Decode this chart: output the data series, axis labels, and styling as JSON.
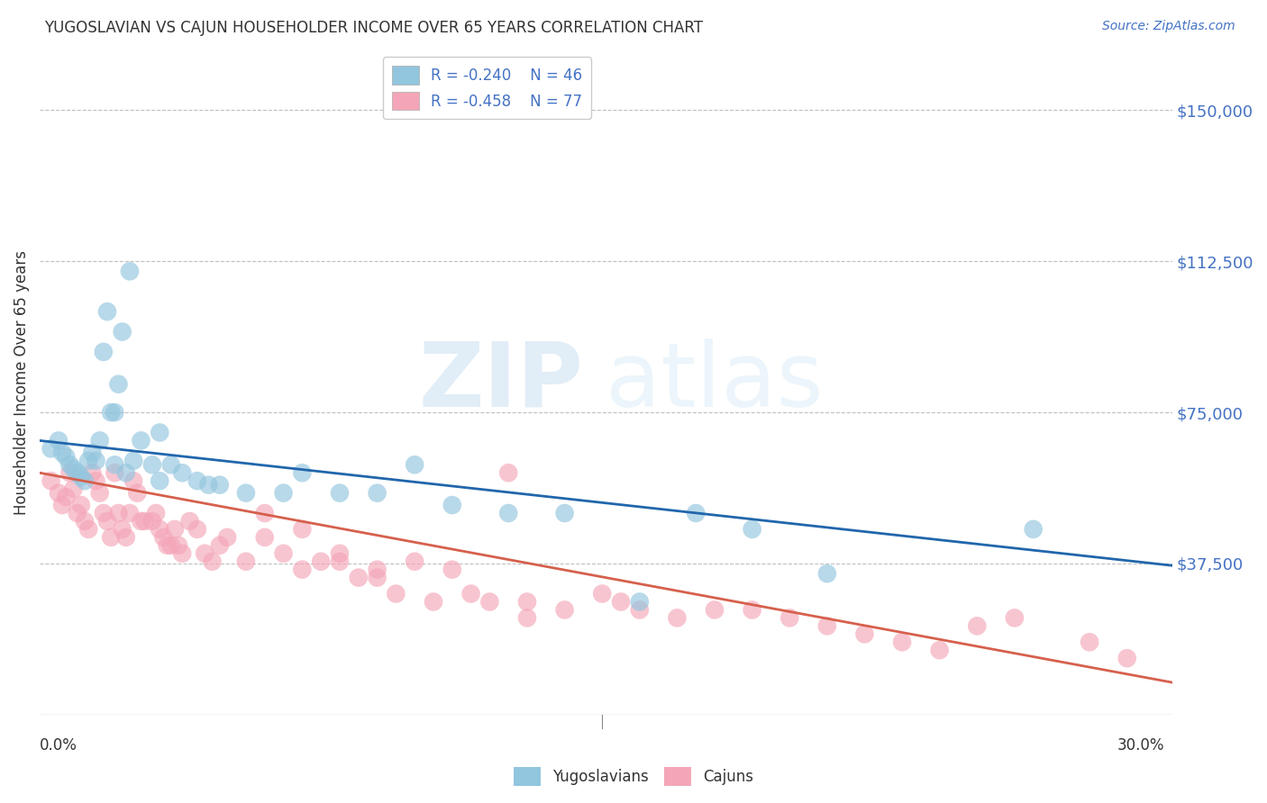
{
  "title": "YUGOSLAVIAN VS CAJUN HOUSEHOLDER INCOME OVER 65 YEARS CORRELATION CHART",
  "source": "Source: ZipAtlas.com",
  "ylabel": "Householder Income Over 65 years",
  "ytick_labels": [
    "$37,500",
    "$75,000",
    "$112,500",
    "$150,000"
  ],
  "ytick_values": [
    37500,
    75000,
    112500,
    150000
  ],
  "ymax": 165000,
  "ymin": 0,
  "xmin": 0.0,
  "xmax": 0.302,
  "legend_blue_r": "R = -0.240",
  "legend_blue_n": "N = 46",
  "legend_pink_r": "R = -0.458",
  "legend_pink_n": "N = 77",
  "blue_color": "#92c5de",
  "blue_line_color": "#2166ac",
  "pink_color": "#f4a6b8",
  "pink_line_color": "#d6604d",
  "watermark_zip": "ZIP",
  "watermark_atlas": "atlas",
  "blue_line_x": [
    0.0,
    0.302
  ],
  "blue_line_y": [
    68000,
    37000
  ],
  "pink_line_x": [
    0.0,
    0.302
  ],
  "pink_line_y": [
    60000,
    8000
  ],
  "blue_scatter_x": [
    0.003,
    0.005,
    0.006,
    0.007,
    0.008,
    0.009,
    0.01,
    0.011,
    0.012,
    0.013,
    0.014,
    0.015,
    0.016,
    0.017,
    0.018,
    0.019,
    0.02,
    0.021,
    0.022,
    0.023,
    0.024,
    0.025,
    0.027,
    0.03,
    0.032,
    0.035,
    0.038,
    0.042,
    0.045,
    0.048,
    0.055,
    0.065,
    0.07,
    0.08,
    0.09,
    0.1,
    0.11,
    0.125,
    0.14,
    0.16,
    0.175,
    0.19,
    0.21,
    0.265,
    0.032,
    0.02
  ],
  "blue_scatter_y": [
    66000,
    68000,
    65000,
    64000,
    62000,
    61000,
    60000,
    59000,
    58000,
    63000,
    65000,
    63000,
    68000,
    90000,
    100000,
    75000,
    62000,
    82000,
    95000,
    60000,
    110000,
    63000,
    68000,
    62000,
    58000,
    62000,
    60000,
    58000,
    57000,
    57000,
    55000,
    55000,
    60000,
    55000,
    55000,
    62000,
    52000,
    50000,
    50000,
    28000,
    50000,
    46000,
    35000,
    46000,
    70000,
    75000
  ],
  "pink_scatter_x": [
    0.003,
    0.005,
    0.006,
    0.007,
    0.008,
    0.009,
    0.01,
    0.011,
    0.012,
    0.013,
    0.014,
    0.015,
    0.016,
    0.017,
    0.018,
    0.019,
    0.02,
    0.021,
    0.022,
    0.023,
    0.024,
    0.025,
    0.026,
    0.027,
    0.028,
    0.03,
    0.031,
    0.032,
    0.033,
    0.034,
    0.035,
    0.036,
    0.037,
    0.038,
    0.04,
    0.042,
    0.044,
    0.046,
    0.048,
    0.05,
    0.055,
    0.06,
    0.065,
    0.07,
    0.075,
    0.08,
    0.085,
    0.09,
    0.095,
    0.1,
    0.105,
    0.11,
    0.115,
    0.12,
    0.125,
    0.13,
    0.14,
    0.15,
    0.155,
    0.16,
    0.17,
    0.18,
    0.19,
    0.2,
    0.21,
    0.22,
    0.23,
    0.24,
    0.25,
    0.26,
    0.13,
    0.06,
    0.07,
    0.08,
    0.09,
    0.28,
    0.29
  ],
  "pink_scatter_y": [
    58000,
    55000,
    52000,
    54000,
    60000,
    56000,
    50000,
    52000,
    48000,
    46000,
    60000,
    58000,
    55000,
    50000,
    48000,
    44000,
    60000,
    50000,
    46000,
    44000,
    50000,
    58000,
    55000,
    48000,
    48000,
    48000,
    50000,
    46000,
    44000,
    42000,
    42000,
    46000,
    42000,
    40000,
    48000,
    46000,
    40000,
    38000,
    42000,
    44000,
    38000,
    44000,
    40000,
    36000,
    38000,
    38000,
    34000,
    34000,
    30000,
    38000,
    28000,
    36000,
    30000,
    28000,
    60000,
    28000,
    26000,
    30000,
    28000,
    26000,
    24000,
    26000,
    26000,
    24000,
    22000,
    20000,
    18000,
    16000,
    22000,
    24000,
    24000,
    50000,
    46000,
    40000,
    36000,
    18000,
    14000
  ]
}
